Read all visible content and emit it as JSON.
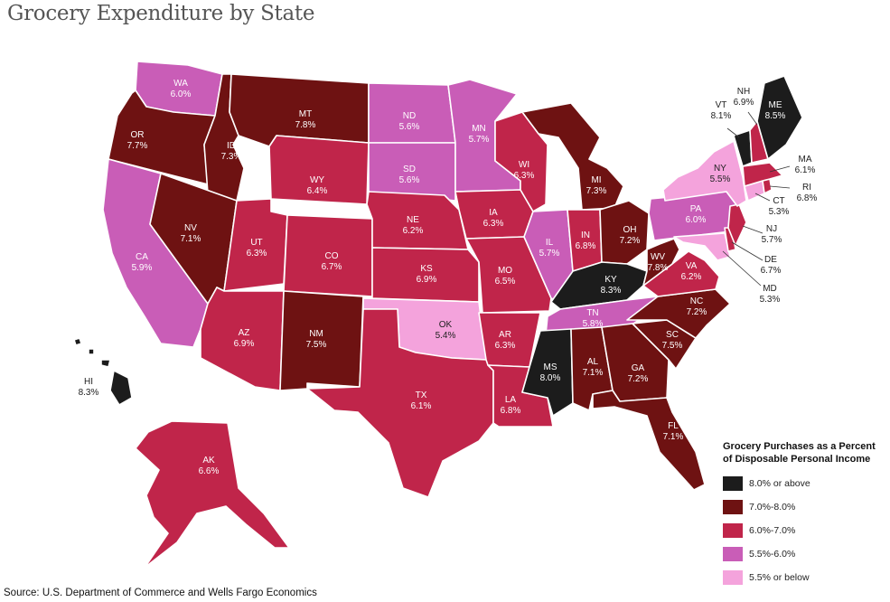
{
  "title": "Grocery Expenditure by State",
  "source": "Source: U.S. Department of Commerce and Wells Fargo Economics",
  "legend": {
    "title_line1": "Grocery Purchases as a Percent",
    "title_line2": "of Disposable Personal Income",
    "classes": [
      {
        "label": "8.0% or above",
        "color": "#1c1c1c"
      },
      {
        "label": "7.0%-8.0%",
        "color": "#6e1212"
      },
      {
        "label": "6.0%-7.0%",
        "color": "#c0254a"
      },
      {
        "label": "5.5%-6.0%",
        "color": "#c95db7"
      },
      {
        "label": "5.5% or below",
        "color": "#f4a3dc"
      }
    ]
  },
  "states": {
    "WA": {
      "abbr": "WA",
      "value": "6.0%"
    },
    "OR": {
      "abbr": "OR",
      "value": "7.7%"
    },
    "CA": {
      "abbr": "CA",
      "value": "5.9%"
    },
    "ID": {
      "abbr": "ID",
      "value": "7.3%"
    },
    "NV": {
      "abbr": "NV",
      "value": "7.1%"
    },
    "MT": {
      "abbr": "MT",
      "value": "7.8%"
    },
    "WY": {
      "abbr": "WY",
      "value": "6.4%"
    },
    "UT": {
      "abbr": "UT",
      "value": "6.3%"
    },
    "AZ": {
      "abbr": "AZ",
      "value": "6.9%"
    },
    "CO": {
      "abbr": "CO",
      "value": "6.7%"
    },
    "NM": {
      "abbr": "NM",
      "value": "7.5%"
    },
    "ND": {
      "abbr": "ND",
      "value": "5.6%"
    },
    "SD": {
      "abbr": "SD",
      "value": "5.6%"
    },
    "NE": {
      "abbr": "NE",
      "value": "6.2%"
    },
    "KS": {
      "abbr": "KS",
      "value": "6.9%"
    },
    "OK": {
      "abbr": "OK",
      "value": "5.4%"
    },
    "TX": {
      "abbr": "TX",
      "value": "6.1%"
    },
    "MN": {
      "abbr": "MN",
      "value": "5.7%"
    },
    "IA": {
      "abbr": "IA",
      "value": "6.3%"
    },
    "MO": {
      "abbr": "MO",
      "value": "6.5%"
    },
    "AR": {
      "abbr": "AR",
      "value": "6.3%"
    },
    "LA": {
      "abbr": "LA",
      "value": "6.8%"
    },
    "WI": {
      "abbr": "WI",
      "value": "6.3%"
    },
    "IL": {
      "abbr": "IL",
      "value": "5.7%"
    },
    "MI": {
      "abbr": "MI",
      "value": "7.3%"
    },
    "IN": {
      "abbr": "IN",
      "value": "6.8%"
    },
    "OH": {
      "abbr": "OH",
      "value": "7.2%"
    },
    "KY": {
      "abbr": "KY",
      "value": "8.3%"
    },
    "TN": {
      "abbr": "TN",
      "value": "5.8%"
    },
    "MS": {
      "abbr": "MS",
      "value": "8.0%"
    },
    "AL": {
      "abbr": "AL",
      "value": "7.1%"
    },
    "GA": {
      "abbr": "GA",
      "value": "7.2%"
    },
    "FL": {
      "abbr": "FL",
      "value": "7.1%"
    },
    "SC": {
      "abbr": "SC",
      "value": "7.5%"
    },
    "NC": {
      "abbr": "NC",
      "value": "7.2%"
    },
    "VA": {
      "abbr": "VA",
      "value": "6.2%"
    },
    "WV": {
      "abbr": "WV",
      "value": "7.8%"
    },
    "PA": {
      "abbr": "PA",
      "value": "6.0%"
    },
    "NY": {
      "abbr": "NY",
      "value": "5.5%"
    },
    "VT": {
      "abbr": "VT",
      "value": "8.1%"
    },
    "NH": {
      "abbr": "NH",
      "value": "6.9%"
    },
    "ME": {
      "abbr": "ME",
      "value": "8.5%"
    },
    "MA": {
      "abbr": "MA",
      "value": "6.1%"
    },
    "RI": {
      "abbr": "RI",
      "value": "6.8%"
    },
    "CT": {
      "abbr": "CT",
      "value": "5.3%"
    },
    "NJ": {
      "abbr": "NJ",
      "value": "5.7%"
    },
    "DE": {
      "abbr": "DE",
      "value": "6.7%"
    },
    "MD": {
      "abbr": "MD",
      "value": "5.3%"
    },
    "AK": {
      "abbr": "AK",
      "value": "6.6%"
    },
    "HI": {
      "abbr": "HI",
      "value": "8.3%"
    }
  }
}
